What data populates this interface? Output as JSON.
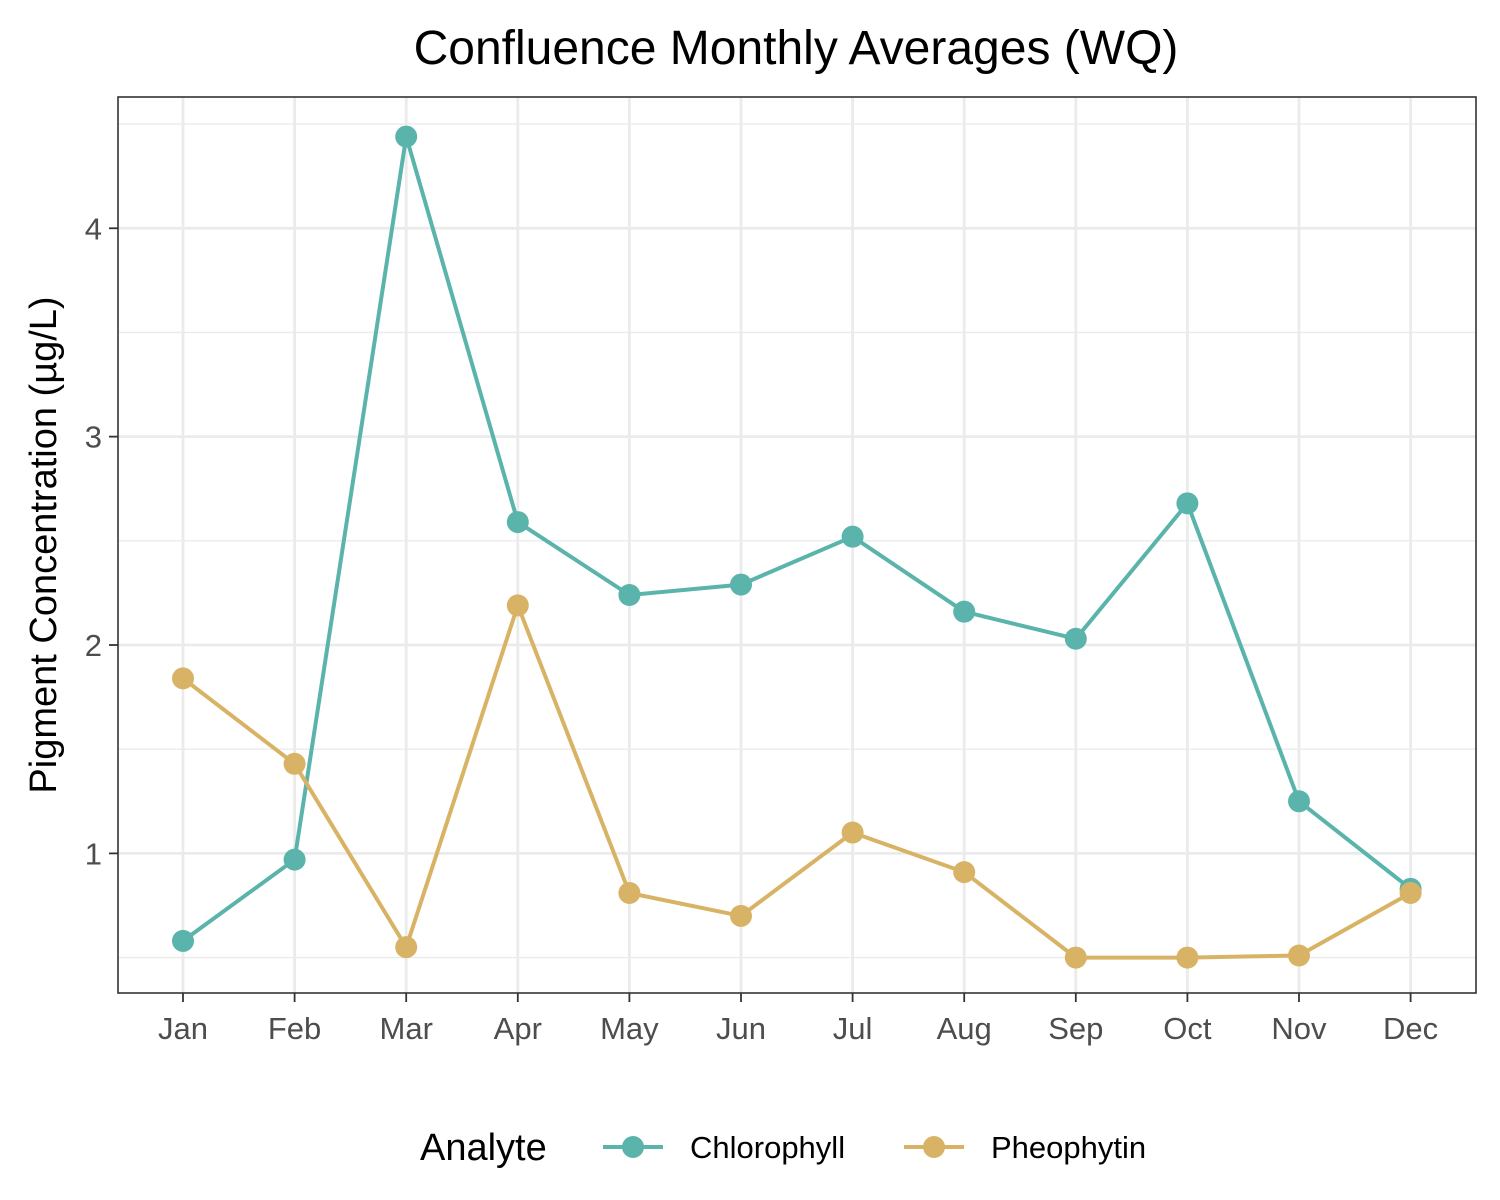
{
  "chart_data": {
    "type": "line",
    "title": "Confluence Monthly Averages (WQ)",
    "xlabel": "",
    "ylabel": "Pigment Concentration (µg/L)",
    "categories": [
      "Jan",
      "Feb",
      "Mar",
      "Apr",
      "May",
      "Jun",
      "Jul",
      "Aug",
      "Sep",
      "Oct",
      "Nov",
      "Dec"
    ],
    "ylim": [
      0.33,
      4.63
    ],
    "yticks": [
      1,
      2,
      3,
      4
    ],
    "grid": true,
    "legend": {
      "title": "Analyte",
      "position": "bottom"
    },
    "series": [
      {
        "name": "Chlorophyll",
        "color": "#5ab4ac",
        "values": [
          0.58,
          0.97,
          4.44,
          2.59,
          2.24,
          2.29,
          2.52,
          2.16,
          2.03,
          2.68,
          1.25,
          0.83
        ]
      },
      {
        "name": "Pheophytin",
        "color": "#d8b365",
        "values": [
          1.84,
          1.43,
          0.55,
          2.19,
          0.81,
          0.7,
          1.1,
          0.91,
          0.5,
          0.5,
          0.51,
          0.81
        ]
      }
    ]
  }
}
